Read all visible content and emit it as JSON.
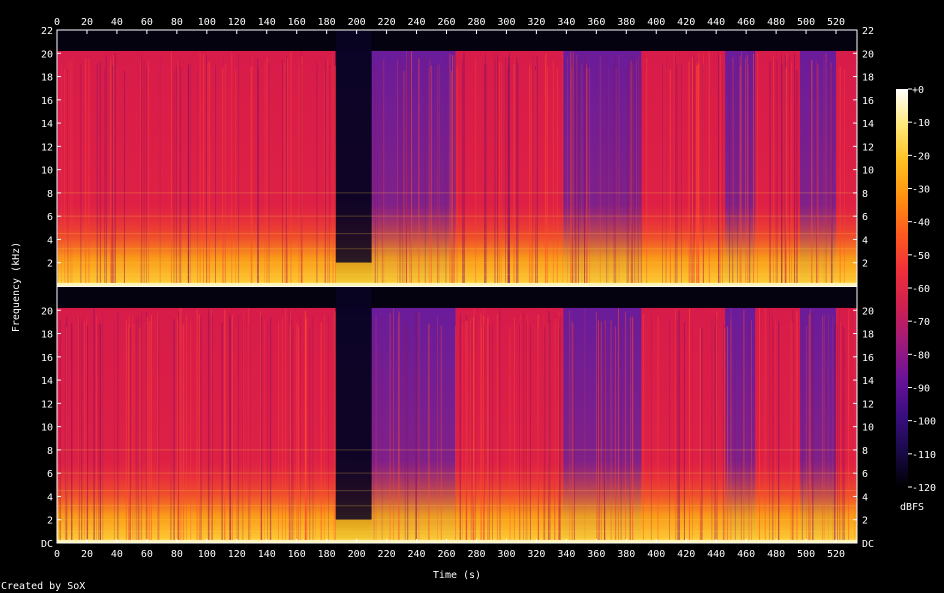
{
  "chart_data": {
    "type": "heatmap",
    "xlabel": "Time (s)",
    "ylabel": "Frequency (kHz)",
    "x_ticks": [
      "0",
      "20",
      "40",
      "60",
      "80",
      "100",
      "120",
      "140",
      "160",
      "180",
      "200",
      "220",
      "240",
      "260",
      "280",
      "300",
      "320",
      "340",
      "360",
      "380",
      "400",
      "420",
      "440",
      "460",
      "480",
      "500",
      "520"
    ],
    "xlim": [
      0,
      534
    ],
    "ylim_khz": [
      0,
      22
    ],
    "y_ticks_top_channel": [
      "2",
      "4",
      "6",
      "8",
      "10",
      "12",
      "14",
      "16",
      "18",
      "20",
      "22"
    ],
    "y_ticks_bottom_channel": [
      "DC",
      "2",
      "4",
      "6",
      "8",
      "10",
      "12",
      "14",
      "16",
      "18",
      "20"
    ],
    "channels": 2,
    "colorbar": {
      "label": "dBFS",
      "ticks": [
        "+0",
        "-10",
        "-20",
        "-30",
        "-40",
        "-50",
        "-60",
        "-70",
        "-80",
        "-90",
        "-100",
        "-110",
        "-120"
      ],
      "range": [
        -120,
        0
      ],
      "colors": [
        "#000000",
        "#1a0a4a",
        "#3a0e80",
        "#6b1298",
        "#a01a7a",
        "#d02050",
        "#f0303a",
        "#ff5a1e",
        "#ff9010",
        "#ffc020",
        "#ffe878",
        "#ffffff"
      ]
    },
    "content_lowpass_khz": 20.2,
    "loud_segments_s": [
      [
        0,
        186
      ],
      [
        210,
        534
      ]
    ],
    "quiet_segment_s": [
      186,
      210
    ],
    "dim_segments_s": [
      [
        210,
        265
      ],
      [
        337,
        390
      ],
      [
        445,
        465
      ],
      [
        495,
        520
      ]
    ]
  },
  "footer": {
    "credit": "Created by SoX"
  }
}
